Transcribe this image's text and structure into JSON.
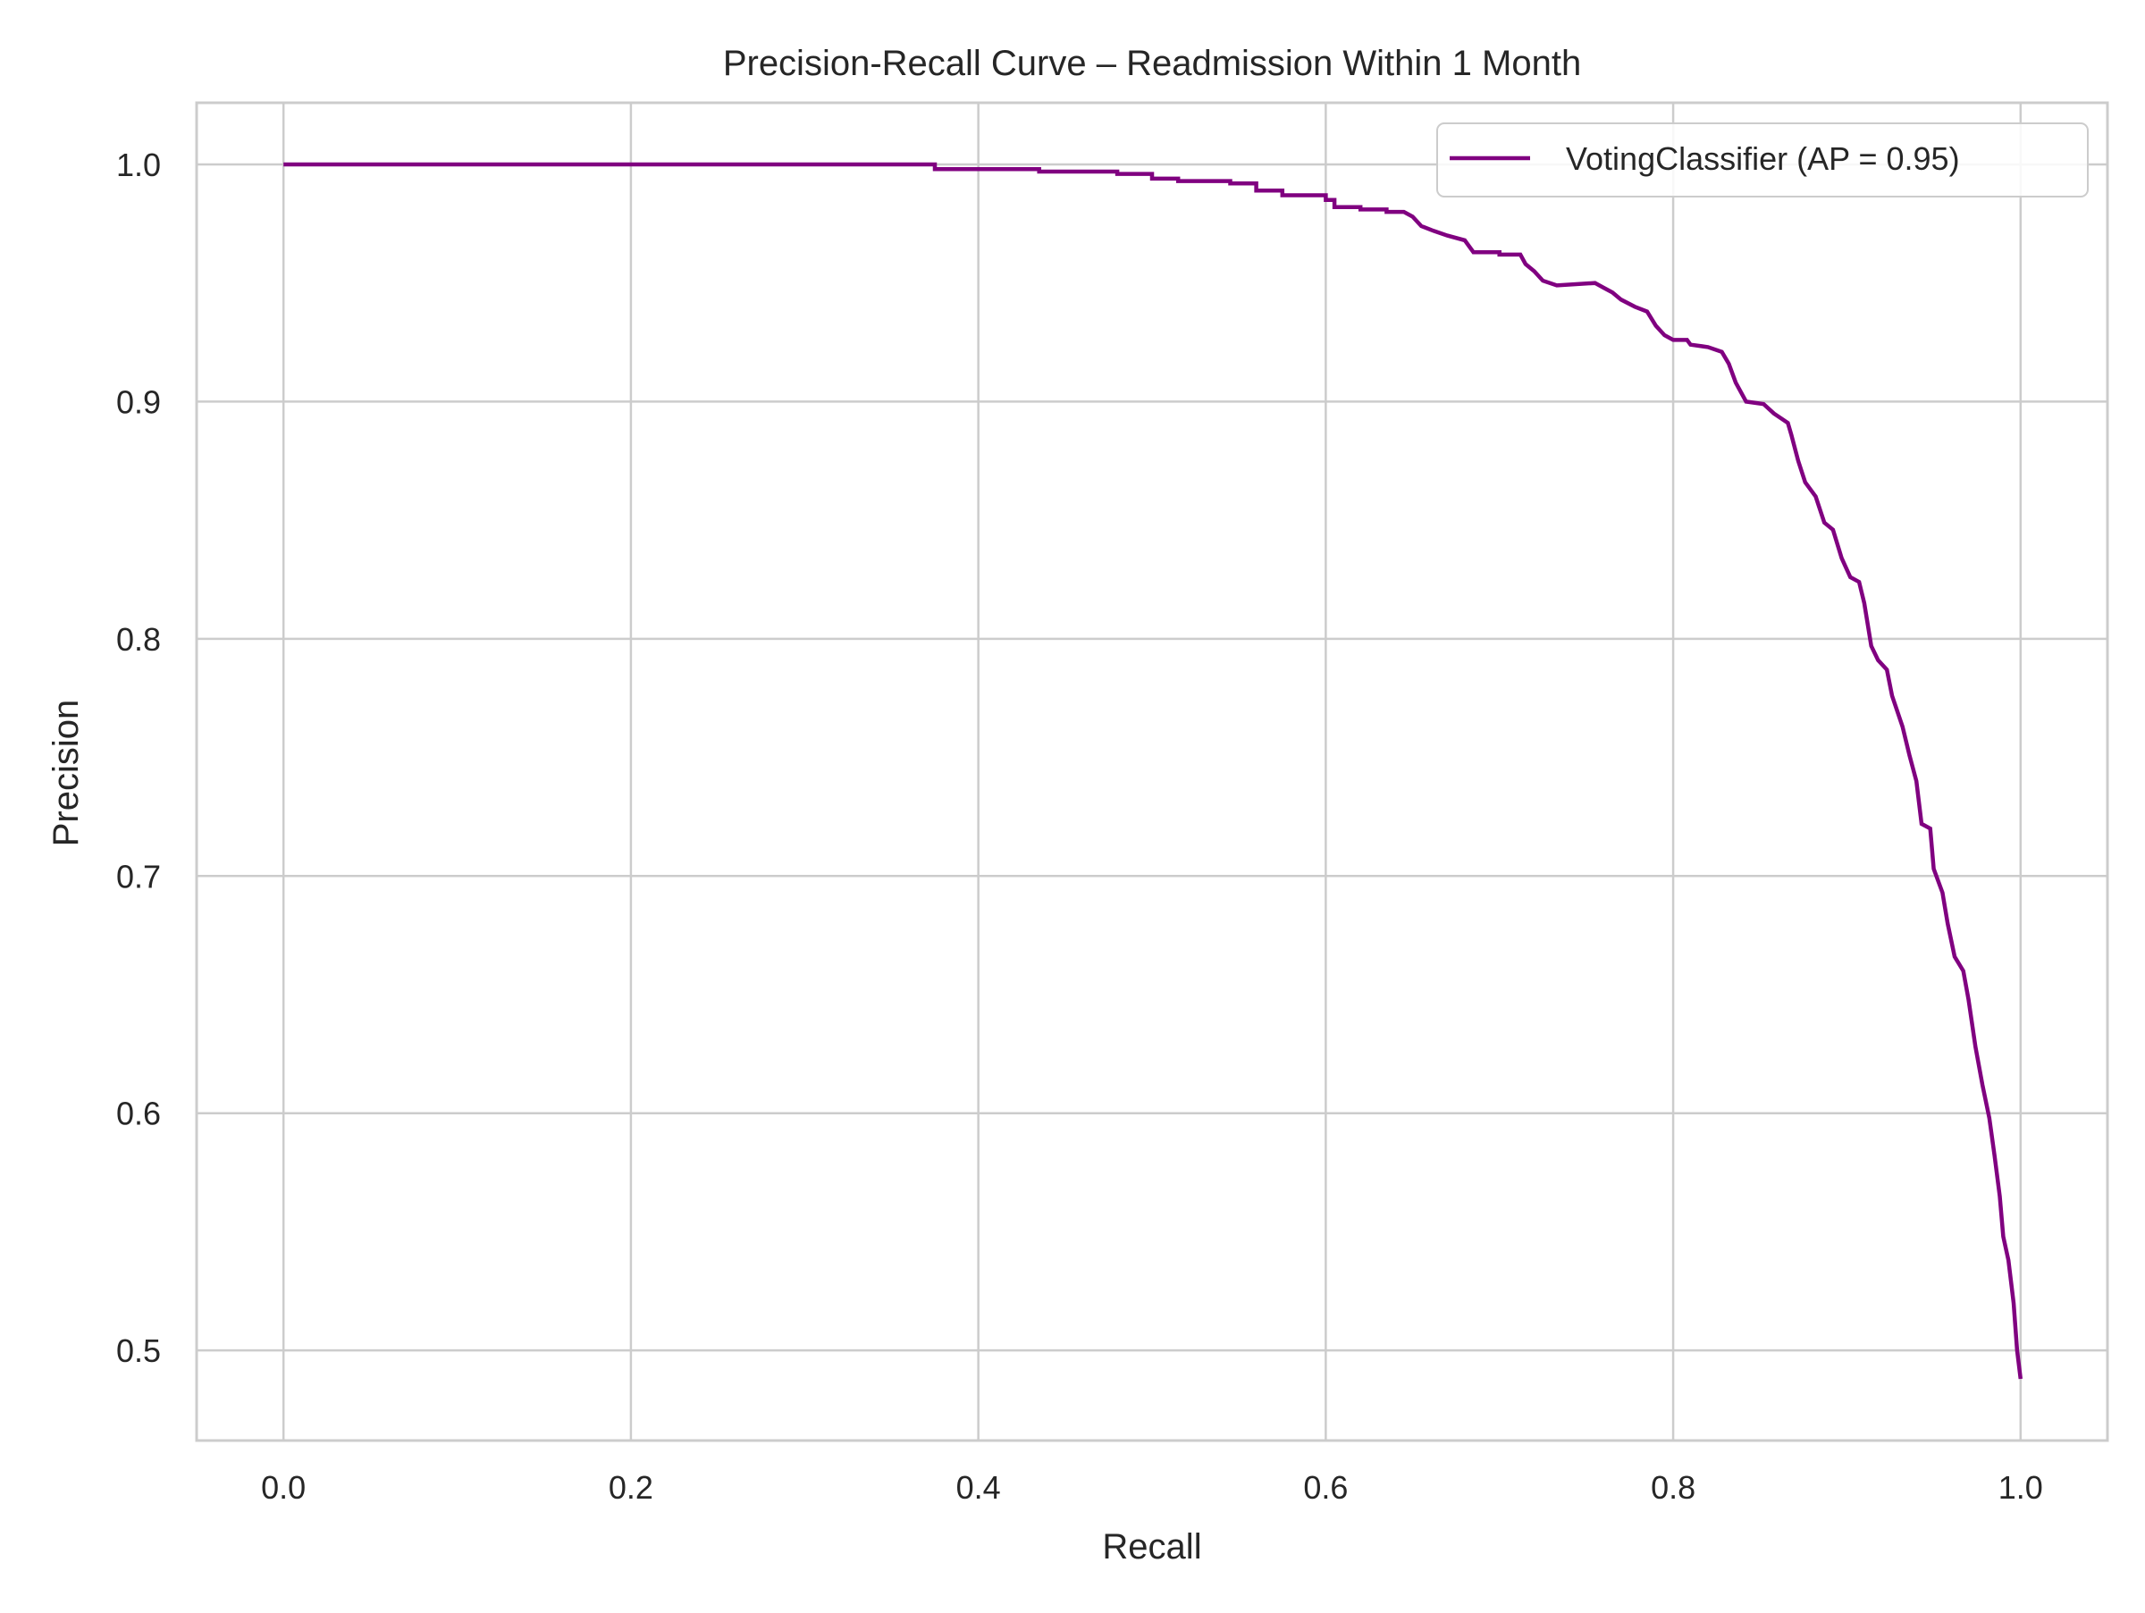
{
  "chart_data": {
    "type": "line",
    "title": "Precision-Recall Curve – Readmission Within 1 Month",
    "xlabel": "Recall",
    "ylabel": "Precision",
    "xlim": [
      -0.05,
      1.05
    ],
    "ylim": [
      0.462,
      1.026
    ],
    "xticks": [
      0.0,
      0.2,
      0.4,
      0.6,
      0.8,
      1.0
    ],
    "xtick_labels": [
      "0.0",
      "0.2",
      "0.4",
      "0.6",
      "0.8",
      "1.0"
    ],
    "yticks": [
      0.5,
      0.6,
      0.7,
      0.8,
      0.9,
      1.0
    ],
    "ytick_labels": [
      "0.5",
      "0.6",
      "0.7",
      "0.8",
      "0.9",
      "1.0"
    ],
    "grid": true,
    "legend_position": "top-right",
    "series": [
      {
        "name": "VotingClassifier (AP = 0.95)",
        "color": "#800080",
        "step": "post",
        "points": [
          [
            0.0,
            1.0
          ],
          [
            0.375,
            1.0
          ],
          [
            0.375,
            0.998
          ],
          [
            0.435,
            0.998
          ],
          [
            0.435,
            0.997
          ],
          [
            0.48,
            0.997
          ],
          [
            0.48,
            0.996
          ],
          [
            0.5,
            0.996
          ],
          [
            0.5,
            0.994
          ],
          [
            0.515,
            0.994
          ],
          [
            0.515,
            0.993
          ],
          [
            0.545,
            0.993
          ],
          [
            0.545,
            0.992
          ],
          [
            0.56,
            0.992
          ],
          [
            0.56,
            0.989
          ],
          [
            0.575,
            0.989
          ],
          [
            0.575,
            0.987
          ],
          [
            0.6,
            0.987
          ],
          [
            0.6,
            0.985
          ],
          [
            0.605,
            0.985
          ],
          [
            0.605,
            0.982
          ],
          [
            0.62,
            0.982
          ],
          [
            0.62,
            0.981
          ],
          [
            0.635,
            0.981
          ],
          [
            0.635,
            0.98
          ],
          [
            0.645,
            0.98
          ],
          [
            0.65,
            0.978
          ],
          [
            0.655,
            0.974
          ],
          [
            0.662,
            0.972
          ],
          [
            0.67,
            0.97
          ],
          [
            0.68,
            0.968
          ],
          [
            0.685,
            0.963
          ],
          [
            0.7,
            0.963
          ],
          [
            0.7,
            0.962
          ],
          [
            0.712,
            0.962
          ],
          [
            0.715,
            0.958
          ],
          [
            0.72,
            0.955
          ],
          [
            0.725,
            0.951
          ],
          [
            0.733,
            0.949
          ],
          [
            0.755,
            0.95
          ],
          [
            0.76,
            0.948
          ],
          [
            0.765,
            0.946
          ],
          [
            0.77,
            0.943
          ],
          [
            0.778,
            0.94
          ],
          [
            0.785,
            0.938
          ],
          [
            0.79,
            0.932
          ],
          [
            0.795,
            0.928
          ],
          [
            0.8,
            0.926
          ],
          [
            0.808,
            0.926
          ],
          [
            0.81,
            0.924
          ],
          [
            0.82,
            0.923
          ],
          [
            0.828,
            0.921
          ],
          [
            0.832,
            0.916
          ],
          [
            0.836,
            0.908
          ],
          [
            0.842,
            0.9
          ],
          [
            0.852,
            0.899
          ],
          [
            0.858,
            0.895
          ],
          [
            0.866,
            0.891
          ],
          [
            0.868,
            0.886
          ],
          [
            0.872,
            0.875
          ],
          [
            0.876,
            0.866
          ],
          [
            0.882,
            0.86
          ],
          [
            0.887,
            0.849
          ],
          [
            0.892,
            0.846
          ],
          [
            0.897,
            0.834
          ],
          [
            0.902,
            0.826
          ],
          [
            0.907,
            0.824
          ],
          [
            0.91,
            0.815
          ],
          [
            0.914,
            0.797
          ],
          [
            0.918,
            0.791
          ],
          [
            0.923,
            0.787
          ],
          [
            0.926,
            0.776
          ],
          [
            0.932,
            0.763
          ],
          [
            0.936,
            0.751
          ],
          [
            0.94,
            0.74
          ],
          [
            0.943,
            0.722
          ],
          [
            0.948,
            0.72
          ],
          [
            0.95,
            0.703
          ],
          [
            0.955,
            0.693
          ],
          [
            0.958,
            0.68
          ],
          [
            0.962,
            0.666
          ],
          [
            0.967,
            0.66
          ],
          [
            0.97,
            0.648
          ],
          [
            0.974,
            0.628
          ],
          [
            0.978,
            0.612
          ],
          [
            0.982,
            0.598
          ],
          [
            0.985,
            0.582
          ],
          [
            0.988,
            0.565
          ],
          [
            0.99,
            0.548
          ],
          [
            0.993,
            0.538
          ],
          [
            0.996,
            0.52
          ],
          [
            0.998,
            0.5
          ],
          [
            1.0,
            0.488
          ]
        ]
      }
    ]
  }
}
